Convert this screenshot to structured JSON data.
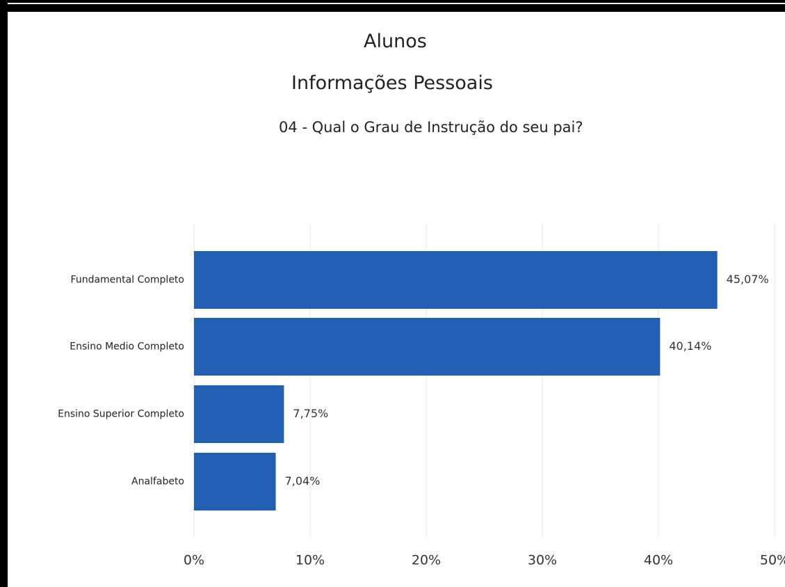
{
  "title": "Alunos",
  "subtitle": "Informações Pessoais",
  "chart_data": {
    "type": "bar",
    "orientation": "horizontal",
    "title": "04 - Qual o Grau de Instrução do seu pai?",
    "categories": [
      "Fundamental Completo",
      "Ensino Medio Completo",
      "Ensino Superior Completo",
      "Analfabeto"
    ],
    "values": [
      45.07,
      40.14,
      7.75,
      7.04
    ],
    "value_labels": [
      "45,07%",
      "40,14%",
      "7,75%",
      "7,04%"
    ],
    "xlim": [
      0,
      50
    ],
    "x_ticks": [
      "0%",
      "10%",
      "20%",
      "30%",
      "40%",
      "50%"
    ],
    "grid": true,
    "bar_color": "#2160b2",
    "xlabel": "",
    "ylabel": ""
  }
}
